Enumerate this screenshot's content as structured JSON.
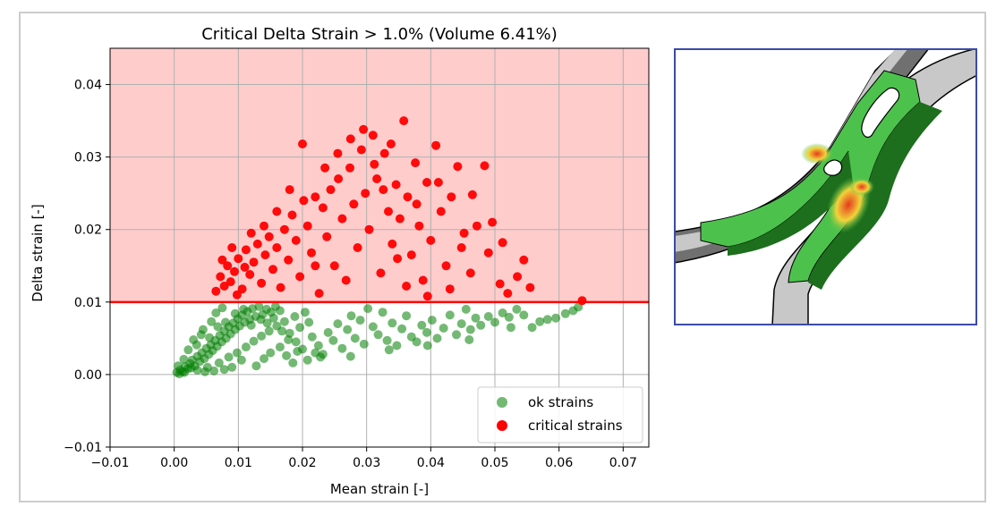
{
  "chart_data": {
    "type": "scatter",
    "title": "Critical Delta Strain > 1.0% (Volume 6.41%)",
    "xlabel": "Mean strain [-]",
    "ylabel": "Delta strain  [-]",
    "xlim": [
      -0.01,
      0.074
    ],
    "ylim": [
      -0.01,
      0.045
    ],
    "xticks": [
      -0.01,
      0.0,
      0.01,
      0.02,
      0.03,
      0.04,
      0.05,
      0.06,
      0.07
    ],
    "xtick_labels": [
      "−0.01",
      "0.00",
      "0.01",
      "0.02",
      "0.03",
      "0.04",
      "0.05",
      "0.06",
      "0.07"
    ],
    "yticks": [
      -0.01,
      0.0,
      0.01,
      0.02,
      0.03,
      0.04
    ],
    "ytick_labels": [
      "−0.01",
      "0.00",
      "0.01",
      "0.02",
      "0.03",
      "0.04"
    ],
    "grid": true,
    "threshold": 0.01,
    "critical_region_color": "#ffcccc",
    "threshold_color": "#ff0000",
    "legend_position": "lower-right",
    "series": [
      {
        "name": "ok strains",
        "color": "#008000",
        "points": [
          [
            0.0004,
            0.0003
          ],
          [
            0.0009,
            0.0006
          ],
          [
            0.0013,
            0.0004
          ],
          [
            0.0017,
            0.0011
          ],
          [
            0.0021,
            0.0008
          ],
          [
            0.0025,
            0.0015
          ],
          [
            0.0028,
            0.002
          ],
          [
            0.0032,
            0.0012
          ],
          [
            0.0036,
            0.0025
          ],
          [
            0.004,
            0.0018
          ],
          [
            0.0043,
            0.003
          ],
          [
            0.0047,
            0.0022
          ],
          [
            0.005,
            0.0036
          ],
          [
            0.0054,
            0.0028
          ],
          [
            0.0057,
            0.0041
          ],
          [
            0.006,
            0.0033
          ],
          [
            0.0064,
            0.0047
          ],
          [
            0.0067,
            0.0039
          ],
          [
            0.0071,
            0.0054
          ],
          [
            0.0074,
            0.0045
          ],
          [
            0.0078,
            0.006
          ],
          [
            0.0081,
            0.005
          ],
          [
            0.0085,
            0.0066
          ],
          [
            0.0088,
            0.0056
          ],
          [
            0.0092,
            0.0071
          ],
          [
            0.0095,
            0.0062
          ],
          [
            0.0099,
            0.0077
          ],
          [
            0.0102,
            0.0067
          ],
          [
            0.0106,
            0.0082
          ],
          [
            0.011,
            0.0072
          ],
          [
            0.0114,
            0.0087
          ],
          [
            0.0118,
            0.0076
          ],
          [
            0.0122,
            0.0091
          ],
          [
            0.0127,
            0.008
          ],
          [
            0.0132,
            0.0094
          ],
          [
            0.0138,
            0.0083
          ],
          [
            0.0144,
            0.009
          ],
          [
            0.0151,
            0.0086
          ],
          [
            0.0158,
            0.0094
          ],
          [
            0.0165,
            0.0088
          ],
          [
            0.003,
            0.0048
          ],
          [
            0.0045,
            0.0062
          ],
          [
            0.0058,
            0.0073
          ],
          [
            0.0065,
            0.0085
          ],
          [
            0.0075,
            0.0092
          ],
          [
            0.0052,
            0.001
          ],
          [
            0.007,
            0.0016
          ],
          [
            0.0085,
            0.0024
          ],
          [
            0.0098,
            0.003
          ],
          [
            0.0112,
            0.0038
          ],
          [
            0.0124,
            0.0046
          ],
          [
            0.0136,
            0.0053
          ],
          [
            0.0148,
            0.006
          ],
          [
            0.016,
            0.0067
          ],
          [
            0.0172,
            0.0073
          ],
          [
            0.018,
            0.0057
          ],
          [
            0.0188,
            0.008
          ],
          [
            0.0196,
            0.0065
          ],
          [
            0.0204,
            0.0086
          ],
          [
            0.021,
            0.0072
          ],
          [
            0.015,
            0.003
          ],
          [
            0.0165,
            0.0038
          ],
          [
            0.0175,
            0.0026
          ],
          [
            0.019,
            0.0045
          ],
          [
            0.02,
            0.0035
          ],
          [
            0.0215,
            0.0052
          ],
          [
            0.0225,
            0.004
          ],
          [
            0.0232,
            0.0028
          ],
          [
            0.024,
            0.0058
          ],
          [
            0.0248,
            0.0047
          ],
          [
            0.0255,
            0.007
          ],
          [
            0.0262,
            0.0036
          ],
          [
            0.027,
            0.0062
          ],
          [
            0.0276,
            0.0081
          ],
          [
            0.0282,
            0.005
          ],
          [
            0.029,
            0.0075
          ],
          [
            0.0296,
            0.0042
          ],
          [
            0.0302,
            0.0091
          ],
          [
            0.031,
            0.0066
          ],
          [
            0.0318,
            0.0055
          ],
          [
            0.0325,
            0.0086
          ],
          [
            0.0332,
            0.0047
          ],
          [
            0.034,
            0.0071
          ],
          [
            0.0347,
            0.004
          ],
          [
            0.0355,
            0.0063
          ],
          [
            0.0362,
            0.0081
          ],
          [
            0.037,
            0.0052
          ],
          [
            0.0378,
            0.0045
          ],
          [
            0.0386,
            0.0068
          ],
          [
            0.0394,
            0.0058
          ],
          [
            0.0402,
            0.0075
          ],
          [
            0.041,
            0.005
          ],
          [
            0.042,
            0.0064
          ],
          [
            0.043,
            0.0082
          ],
          [
            0.044,
            0.0055
          ],
          [
            0.0448,
            0.007
          ],
          [
            0.0455,
            0.009
          ],
          [
            0.0462,
            0.0062
          ],
          [
            0.047,
            0.0078
          ],
          [
            0.0478,
            0.0068
          ],
          [
            0.049,
            0.008
          ],
          [
            0.05,
            0.0072
          ],
          [
            0.0512,
            0.0085
          ],
          [
            0.0522,
            0.0079
          ],
          [
            0.0534,
            0.009
          ],
          [
            0.0545,
            0.0082
          ],
          [
            0.0558,
            0.0065
          ],
          [
            0.057,
            0.0073
          ],
          [
            0.0582,
            0.0076
          ],
          [
            0.0595,
            0.0078
          ],
          [
            0.061,
            0.0084
          ],
          [
            0.0622,
            0.0088
          ],
          [
            0.063,
            0.0093
          ],
          [
            0.0525,
            0.0065
          ],
          [
            0.046,
            0.0048
          ],
          [
            0.0395,
            0.004
          ],
          [
            0.0335,
            0.0034
          ],
          [
            0.0275,
            0.0025
          ],
          [
            0.022,
            0.003
          ],
          [
            0.0185,
            0.0016
          ],
          [
            0.014,
            0.0022
          ],
          [
            0.0128,
            0.0012
          ],
          [
            0.0105,
            0.002
          ],
          [
            0.009,
            0.001
          ],
          [
            0.0078,
            0.0007
          ],
          [
            0.0062,
            0.0005
          ],
          [
            0.0048,
            0.0004
          ],
          [
            0.0036,
            0.0006
          ],
          [
            0.0026,
            0.0009
          ],
          [
            0.0016,
            0.0003
          ],
          [
            0.0008,
            0.0001
          ],
          [
            0.0006,
            0.0012
          ],
          [
            0.0015,
            0.0021
          ],
          [
            0.0022,
            0.0034
          ],
          [
            0.0035,
            0.0041
          ],
          [
            0.0042,
            0.0055
          ],
          [
            0.0055,
            0.0051
          ],
          [
            0.0068,
            0.0066
          ],
          [
            0.008,
            0.0072
          ],
          [
            0.0095,
            0.0084
          ],
          [
            0.0108,
            0.009
          ],
          [
            0.012,
            0.0068
          ],
          [
            0.0135,
            0.0076
          ],
          [
            0.0145,
            0.0071
          ],
          [
            0.0155,
            0.0078
          ],
          [
            0.0168,
            0.006
          ],
          [
            0.0178,
            0.0048
          ],
          [
            0.0192,
            0.0032
          ],
          [
            0.0208,
            0.002
          ],
          [
            0.0228,
            0.0024
          ]
        ]
      },
      {
        "name": "critical strains",
        "color": "#ff0000",
        "points": [
          [
            0.0065,
            0.0115
          ],
          [
            0.0072,
            0.0135
          ],
          [
            0.0078,
            0.0122
          ],
          [
            0.0083,
            0.015
          ],
          [
            0.0088,
            0.0128
          ],
          [
            0.0094,
            0.0142
          ],
          [
            0.01,
            0.016
          ],
          [
            0.0106,
            0.0118
          ],
          [
            0.0112,
            0.0172
          ],
          [
            0.0118,
            0.0138
          ],
          [
            0.0124,
            0.0155
          ],
          [
            0.013,
            0.018
          ],
          [
            0.0136,
            0.0126
          ],
          [
            0.0142,
            0.0165
          ],
          [
            0.0148,
            0.019
          ],
          [
            0.0154,
            0.0145
          ],
          [
            0.016,
            0.0175
          ],
          [
            0.0166,
            0.012
          ],
          [
            0.0172,
            0.02
          ],
          [
            0.0178,
            0.0158
          ],
          [
            0.0184,
            0.022
          ],
          [
            0.019,
            0.0185
          ],
          [
            0.0196,
            0.0135
          ],
          [
            0.0202,
            0.024
          ],
          [
            0.0208,
            0.0205
          ],
          [
            0.0214,
            0.0168
          ],
          [
            0.022,
            0.0245
          ],
          [
            0.0226,
            0.0112
          ],
          [
            0.0232,
            0.023
          ],
          [
            0.0238,
            0.019
          ],
          [
            0.0244,
            0.0255
          ],
          [
            0.025,
            0.015
          ],
          [
            0.0256,
            0.027
          ],
          [
            0.0262,
            0.0215
          ],
          [
            0.0268,
            0.013
          ],
          [
            0.0274,
            0.0285
          ],
          [
            0.028,
            0.0235
          ],
          [
            0.0286,
            0.0175
          ],
          [
            0.0292,
            0.031
          ],
          [
            0.0298,
            0.025
          ],
          [
            0.0304,
            0.02
          ],
          [
            0.031,
            0.033
          ],
          [
            0.0316,
            0.027
          ],
          [
            0.0322,
            0.014
          ],
          [
            0.0328,
            0.0305
          ],
          [
            0.0334,
            0.0225
          ],
          [
            0.034,
            0.018
          ],
          [
            0.0346,
            0.0262
          ],
          [
            0.0352,
            0.0215
          ],
          [
            0.0358,
            0.035
          ],
          [
            0.0364,
            0.0245
          ],
          [
            0.037,
            0.0165
          ],
          [
            0.0376,
            0.0292
          ],
          [
            0.0382,
            0.0205
          ],
          [
            0.0388,
            0.013
          ],
          [
            0.0394,
            0.0265
          ],
          [
            0.04,
            0.0185
          ],
          [
            0.0408,
            0.0316
          ],
          [
            0.0416,
            0.0225
          ],
          [
            0.0424,
            0.015
          ],
          [
            0.0432,
            0.0245
          ],
          [
            0.0442,
            0.0287
          ],
          [
            0.0452,
            0.0195
          ],
          [
            0.0462,
            0.014
          ],
          [
            0.0472,
            0.0205
          ],
          [
            0.0484,
            0.0288
          ],
          [
            0.0496,
            0.021
          ],
          [
            0.0508,
            0.0125
          ],
          [
            0.052,
            0.0112
          ],
          [
            0.0545,
            0.0158
          ],
          [
            0.0636,
            0.0102
          ],
          [
            0.02,
            0.0318
          ],
          [
            0.018,
            0.0255
          ],
          [
            0.016,
            0.0225
          ],
          [
            0.014,
            0.0205
          ],
          [
            0.012,
            0.0195
          ],
          [
            0.011,
            0.0148
          ],
          [
            0.0098,
            0.011
          ],
          [
            0.009,
            0.0175
          ],
          [
            0.0075,
            0.0158
          ],
          [
            0.0235,
            0.0285
          ],
          [
            0.0255,
            0.0305
          ],
          [
            0.0275,
            0.0325
          ],
          [
            0.0295,
            0.0338
          ],
          [
            0.0312,
            0.029
          ],
          [
            0.0326,
            0.0255
          ],
          [
            0.0338,
            0.0318
          ],
          [
            0.0348,
            0.016
          ],
          [
            0.0362,
            0.0122
          ],
          [
            0.0378,
            0.0235
          ],
          [
            0.0395,
            0.0108
          ],
          [
            0.0412,
            0.0265
          ],
          [
            0.043,
            0.0118
          ],
          [
            0.0448,
            0.0175
          ],
          [
            0.0465,
            0.0248
          ],
          [
            0.049,
            0.0168
          ],
          [
            0.0512,
            0.0182
          ],
          [
            0.0535,
            0.0135
          ],
          [
            0.0555,
            0.012
          ],
          [
            0.022,
            0.015
          ]
        ]
      }
    ]
  },
  "inset": {
    "name": "strain-map-thumbnail",
    "colors": {
      "border": "#3b4ba8",
      "dark_gray": "#707070",
      "light_gray": "#c8c8c8",
      "green": "#4cc24c",
      "dark_green": "#1d6e1d",
      "yellow": "#f2d43a",
      "red": "#e53b1e"
    }
  }
}
